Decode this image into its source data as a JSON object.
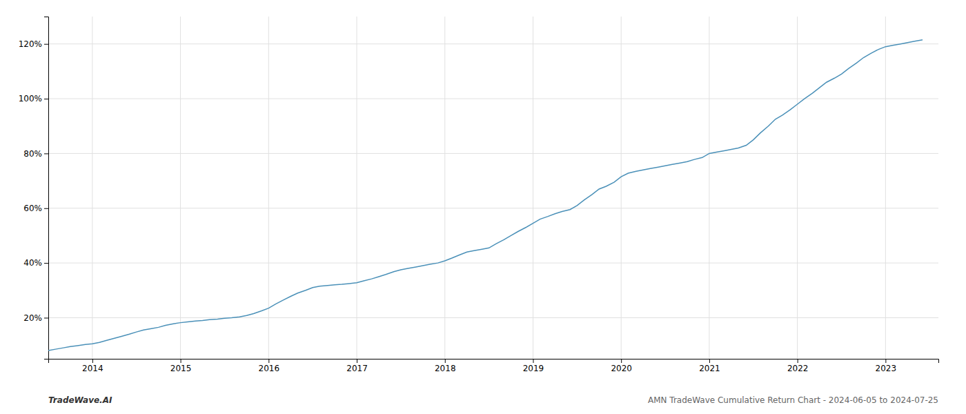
{
  "chart_data": {
    "type": "line",
    "color": "#4a90b8",
    "grid": true,
    "annotations": [
      "TradeWave.AI",
      "AMN TradeWave Cumulative Return Chart - 2024-06-05 to 2024-07-25"
    ],
    "xlim": [
      2013.5,
      2023.6
    ],
    "ylim": [
      5,
      130
    ],
    "xticks": [
      2014,
      2015,
      2016,
      2017,
      2018,
      2019,
      2020,
      2021,
      2022,
      2023
    ],
    "yticks": [
      {
        "value": 20,
        "label": "20%"
      },
      {
        "value": 40,
        "label": "40%"
      },
      {
        "value": 60,
        "label": "60%"
      },
      {
        "value": 80,
        "label": "80%"
      },
      {
        "value": 100,
        "label": "100%"
      },
      {
        "value": 120,
        "label": "120%"
      }
    ],
    "x": [
      2013.5,
      2013.58,
      2013.67,
      2013.75,
      2013.83,
      2013.92,
      2014.0,
      2014.08,
      2014.17,
      2014.25,
      2014.33,
      2014.42,
      2014.5,
      2014.58,
      2014.67,
      2014.75,
      2014.83,
      2014.92,
      2015.0,
      2015.08,
      2015.17,
      2015.25,
      2015.33,
      2015.42,
      2015.5,
      2015.58,
      2015.67,
      2015.75,
      2015.83,
      2015.92,
      2016.0,
      2016.08,
      2016.17,
      2016.25,
      2016.33,
      2016.42,
      2016.5,
      2016.58,
      2016.67,
      2016.75,
      2016.83,
      2016.92,
      2017.0,
      2017.08,
      2017.17,
      2017.25,
      2017.33,
      2017.42,
      2017.5,
      2017.58,
      2017.67,
      2017.75,
      2017.83,
      2017.92,
      2018.0,
      2018.08,
      2018.17,
      2018.25,
      2018.33,
      2018.42,
      2018.5,
      2018.58,
      2018.67,
      2018.75,
      2018.83,
      2018.92,
      2019.0,
      2019.08,
      2019.17,
      2019.25,
      2019.33,
      2019.42,
      2019.5,
      2019.58,
      2019.67,
      2019.75,
      2019.83,
      2019.92,
      2020.0,
      2020.08,
      2020.17,
      2020.25,
      2020.33,
      2020.42,
      2020.5,
      2020.58,
      2020.67,
      2020.75,
      2020.83,
      2020.92,
      2021.0,
      2021.08,
      2021.17,
      2021.25,
      2021.33,
      2021.42,
      2021.5,
      2021.58,
      2021.67,
      2021.75,
      2021.83,
      2021.92,
      2022.0,
      2022.08,
      2022.17,
      2022.25,
      2022.33,
      2022.42,
      2022.5,
      2022.58,
      2022.67,
      2022.75,
      2022.83,
      2022.92,
      2023.0,
      2023.08,
      2023.17,
      2023.25,
      2023.33,
      2023.42
    ],
    "values": [
      8.0,
      8.5,
      9.0,
      9.5,
      9.8,
      10.2,
      10.5,
      11.0,
      11.8,
      12.5,
      13.2,
      14.0,
      14.8,
      15.5,
      16.0,
      16.5,
      17.2,
      17.8,
      18.2,
      18.5,
      18.8,
      19.0,
      19.3,
      19.5,
      19.8,
      20.0,
      20.3,
      20.8,
      21.5,
      22.5,
      23.5,
      25.0,
      26.5,
      27.8,
      29.0,
      30.0,
      31.0,
      31.5,
      31.8,
      32.0,
      32.2,
      32.5,
      32.8,
      33.5,
      34.2,
      35.0,
      35.8,
      36.8,
      37.5,
      38.0,
      38.5,
      39.0,
      39.5,
      40.0,
      40.8,
      41.8,
      43.0,
      44.0,
      44.5,
      45.0,
      45.5,
      47.0,
      48.5,
      50.0,
      51.5,
      53.0,
      54.5,
      56.0,
      57.0,
      58.0,
      58.8,
      59.5,
      61.0,
      63.0,
      65.0,
      67.0,
      68.0,
      69.5,
      71.5,
      72.8,
      73.5,
      74.0,
      74.5,
      75.0,
      75.5,
      76.0,
      76.5,
      77.0,
      77.8,
      78.5,
      80.0,
      80.5,
      81.0,
      81.5,
      82.0,
      83.0,
      85.0,
      87.5,
      90.0,
      92.5,
      94.0,
      96.0,
      98.0,
      100.0,
      102.0,
      104.0,
      106.0,
      107.5,
      109.0,
      111.0,
      113.0,
      115.0,
      116.5,
      118.0,
      119.0,
      119.5,
      120.0,
      120.5,
      121.0,
      121.5
    ]
  }
}
